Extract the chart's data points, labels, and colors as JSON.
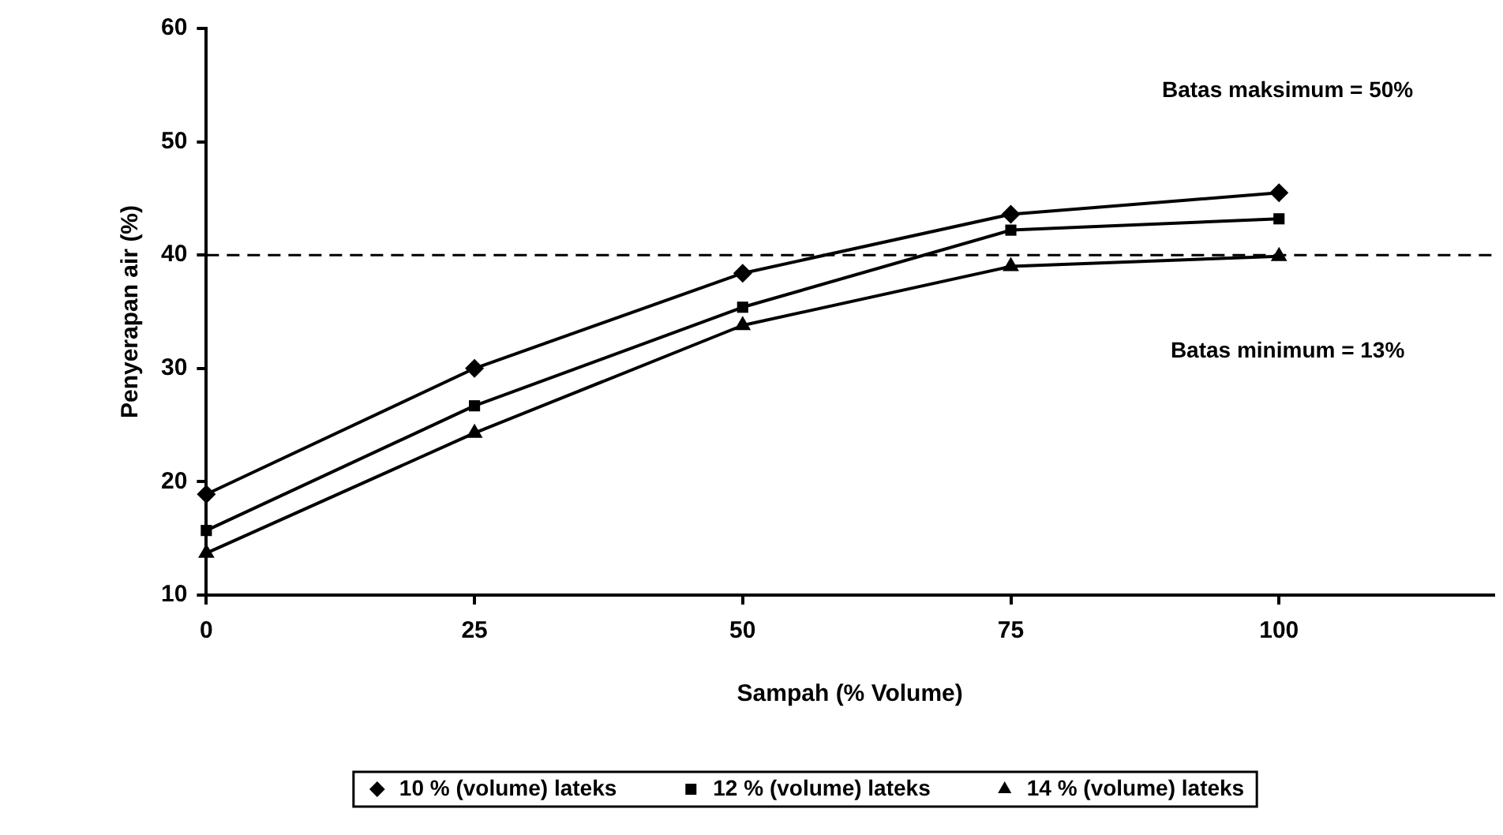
{
  "chart_data": {
    "type": "line",
    "xlabel": "Sampah (% Volume)",
    "ylabel": "Penyerapan air (%)",
    "x": [
      0,
      25,
      50,
      75,
      100
    ],
    "xlim": [
      0,
      120
    ],
    "xticks": [
      0,
      25,
      50,
      75,
      100
    ],
    "ylim": [
      10,
      60
    ],
    "yticks": [
      10,
      20,
      30,
      40,
      50,
      60
    ],
    "series": [
      {
        "name": "10 % (volume) lateks",
        "color": "#000000",
        "marker": "diamond",
        "values": [
          18.9,
          30.0,
          38.4,
          43.6,
          45.5
        ]
      },
      {
        "name": "12 % (volume) lateks",
        "color": "#000000",
        "marker": "square",
        "values": [
          15.7,
          26.7,
          35.4,
          42.2,
          43.2
        ]
      },
      {
        "name": "14 % (volume) lateks",
        "color": "#000000",
        "marker": "triangle",
        "values": [
          13.7,
          24.3,
          33.8,
          39.0,
          39.9
        ]
      }
    ],
    "ref_lines": [
      {
        "axis": "y",
        "value": 40,
        "line_style": "dashed",
        "color": "#000000"
      }
    ],
    "annotations": [
      "Batas maksimum = 50%",
      "Batas minimum = 13%"
    ],
    "grid": false,
    "legend": "bottom",
    "line_style": "solid"
  }
}
